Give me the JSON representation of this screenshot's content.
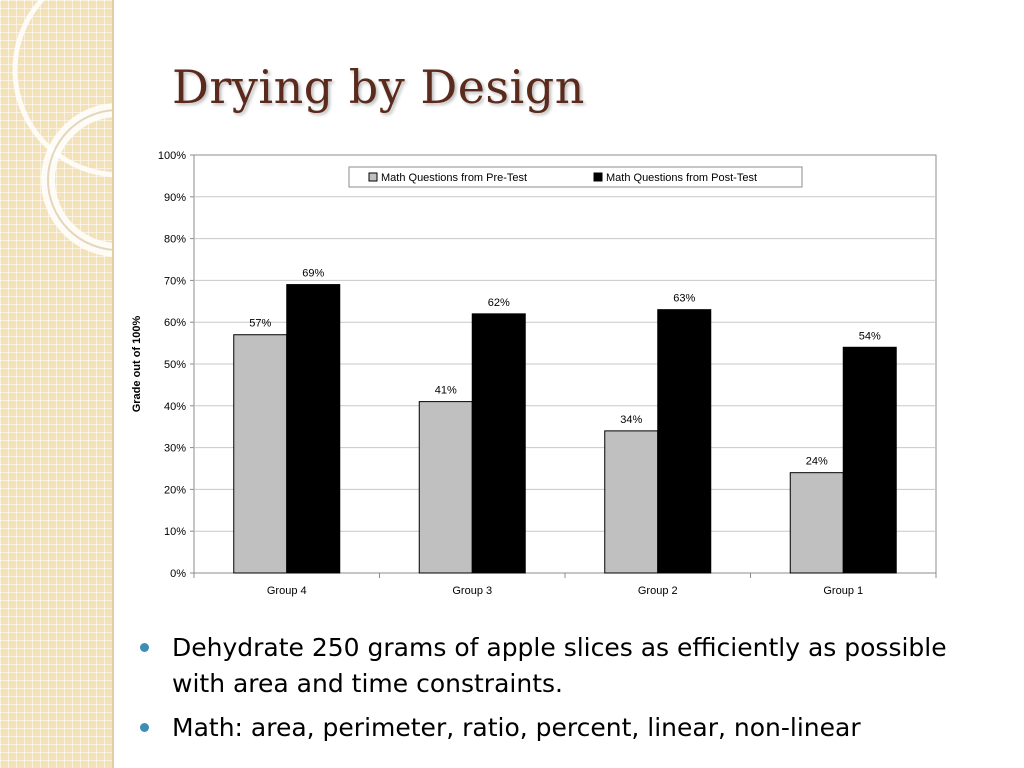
{
  "slide": {
    "title": "Drying by Design",
    "bullets": [
      "Dehydrate 250 grams of apple slices as efficiently as possible with area and time constraints.",
      "Math: area, perimeter, ratio, percent, linear, non-linear"
    ],
    "bullet_color": "#3f8db6",
    "title_color": "#5a2a1c",
    "background_strip_color": "#f3e2b8"
  },
  "chart_data": {
    "type": "bar",
    "title": "",
    "xlabel": "",
    "ylabel": "Grade out of 100%",
    "categories": [
      "Group 4",
      "Group 3",
      "Group 2",
      "Group 1"
    ],
    "series": [
      {
        "name": "Math Questions from Pre-Test",
        "values": [
          57,
          41,
          34,
          24
        ],
        "labels": [
          "57%",
          "41%",
          "34%",
          "24%"
        ],
        "color": "#c0c0c0"
      },
      {
        "name": "Math Questions from Post-Test",
        "values": [
          69,
          62,
          63,
          54
        ],
        "labels": [
          "69%",
          "62%",
          "63%",
          "54%"
        ],
        "color": "#000000"
      }
    ],
    "ylim": [
      0,
      100
    ],
    "yticks": [
      "0%",
      "10%",
      "20%",
      "30%",
      "40%",
      "50%",
      "60%",
      "70%",
      "80%",
      "90%",
      "100%"
    ],
    "grid": true,
    "legend_position": "top"
  }
}
